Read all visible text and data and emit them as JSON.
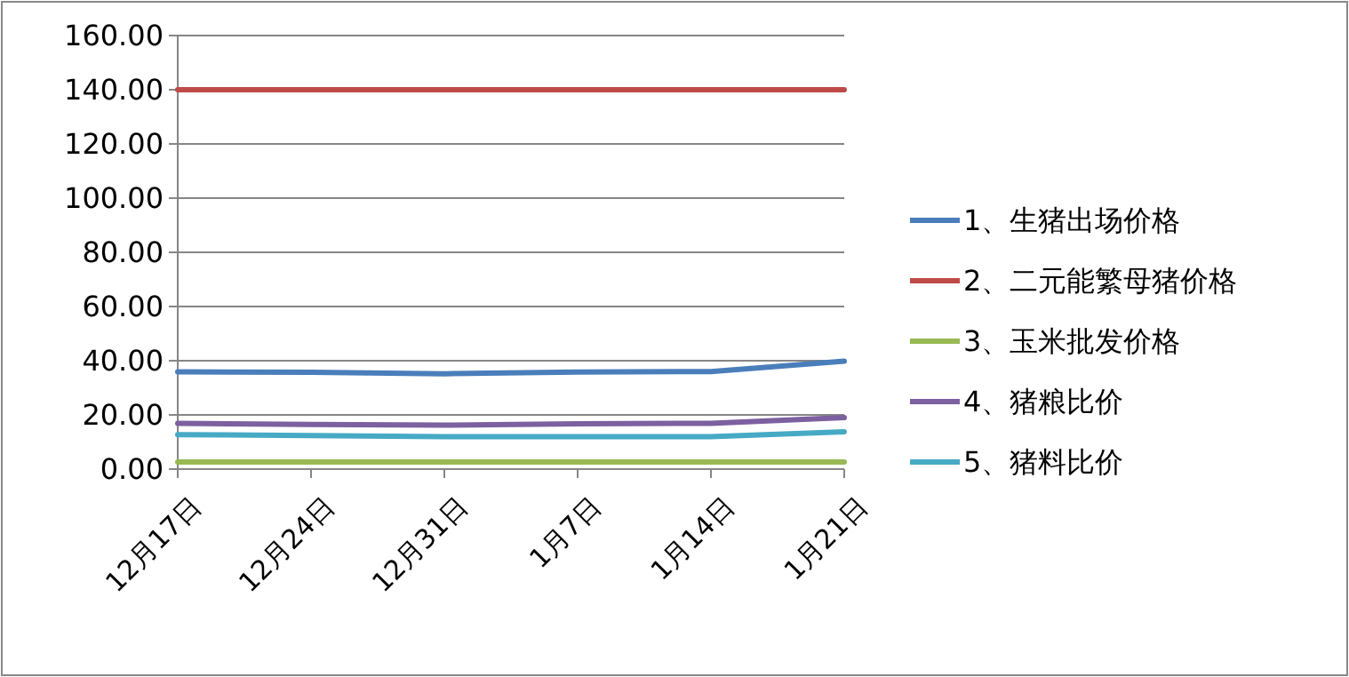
{
  "chart_data": {
    "type": "line",
    "categories": [
      "12月17日",
      "12月24日",
      "12月31日",
      "1月7日",
      "1月14日",
      "1月21日"
    ],
    "series": [
      {
        "name": "1、生猪出场价格",
        "color": "#4a7ebb",
        "values": [
          35.9,
          35.7,
          35.2,
          35.8,
          36.0,
          39.8
        ]
      },
      {
        "name": "2、二元能繁母猪价格",
        "color": "#be4b48",
        "values": [
          140,
          140,
          140,
          140,
          140,
          140
        ]
      },
      {
        "name": "3、玉米批发价格",
        "color": "#98b954",
        "values": [
          2.6,
          2.6,
          2.6,
          2.6,
          2.6,
          2.6
        ]
      },
      {
        "name": "4、猪粮比价",
        "color": "#7d60a0",
        "values": [
          16.9,
          16.5,
          16.2,
          16.7,
          16.9,
          19.0
        ]
      },
      {
        "name": "5、猪料比价",
        "color": "#46aac5",
        "values": [
          12.7,
          12.4,
          12.0,
          12.0,
          12.0,
          13.8
        ]
      }
    ],
    "ylim": [
      0,
      160
    ],
    "yticks": [
      {
        "value": 0,
        "label": "0.00"
      },
      {
        "value": 20,
        "label": "20.00"
      },
      {
        "value": 40,
        "label": "40.00"
      },
      {
        "value": 60,
        "label": "60.00"
      },
      {
        "value": 80,
        "label": "80.00"
      },
      {
        "value": 100,
        "label": "100.00"
      },
      {
        "value": 120,
        "label": "120.00"
      },
      {
        "value": 140,
        "label": "140.00"
      },
      {
        "value": 160,
        "label": "160.00"
      }
    ],
    "grid": "y",
    "legend": "right",
    "marker": "none",
    "line_style": "solid"
  }
}
